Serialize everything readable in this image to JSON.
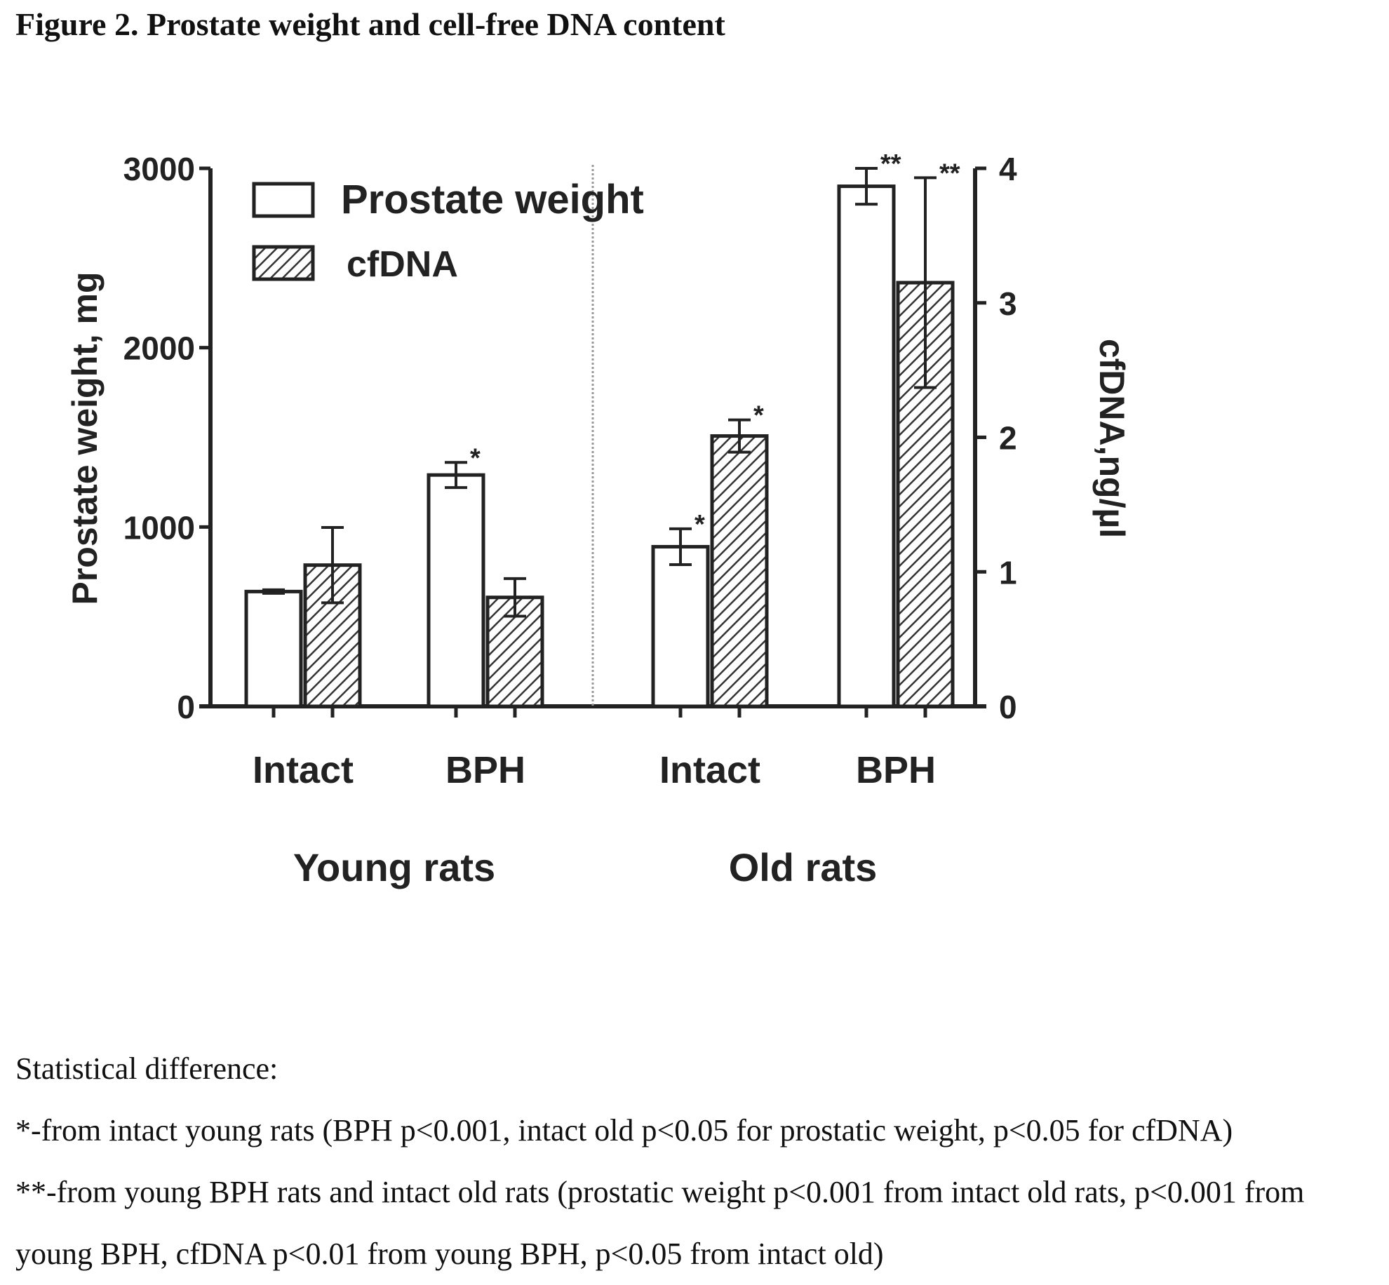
{
  "figure_title": "Figure 2. Prostate weight and cell-free DNA content",
  "notes": {
    "heading": "Statistical difference:",
    "line1": "*-from intact young rats (BPH p<0.001, intact old p<0.05 for prostatic weight, p<0.05 for cfDNA)",
    "line2": "**-from young BPH rats and intact old rats (prostatic weight p<0.001 from intact old rats, p<0.001 from young BPH, cfDNA p<0.01 from young BPH, p<0.05 from intact old)"
  },
  "chart_data": {
    "type": "bar",
    "categories": [
      "Intact",
      "BPH",
      "Intact",
      "BPH"
    ],
    "groups": [
      {
        "label": "Young rats",
        "categories": [
          0,
          1
        ]
      },
      {
        "label": "Old rats",
        "categories": [
          2,
          3
        ]
      }
    ],
    "ylabel": "Prostate weight, mg",
    "ylim": [
      0,
      3000
    ],
    "yticks": [
      "0",
      "1000",
      "2000",
      "3000"
    ],
    "y2label": "cfDNA,ng/µl",
    "y2lim": [
      0,
      4
    ],
    "y2ticks": [
      "0",
      "1",
      "2",
      "3",
      "4"
    ],
    "series": [
      {
        "name": "Prostate weight",
        "axis": "left",
        "fill": "white",
        "values": [
          640,
          1290,
          890,
          2900
        ],
        "errors": [
          10,
          70,
          100,
          100
        ],
        "significance": [
          "",
          "*",
          "*",
          "**"
        ]
      },
      {
        "name": "cfDNA",
        "axis": "right",
        "fill": "hatched",
        "values": [
          1.05,
          0.81,
          2.01,
          3.15
        ],
        "errors": [
          0.28,
          0.14,
          0.12,
          0.78
        ],
        "significance": [
          "",
          "",
          "*",
          "**"
        ]
      }
    ],
    "legend": "top-left",
    "grid": false,
    "colors": {
      "bar_outline": "#222222",
      "hatch": "#333333",
      "divider": "#999999"
    }
  }
}
